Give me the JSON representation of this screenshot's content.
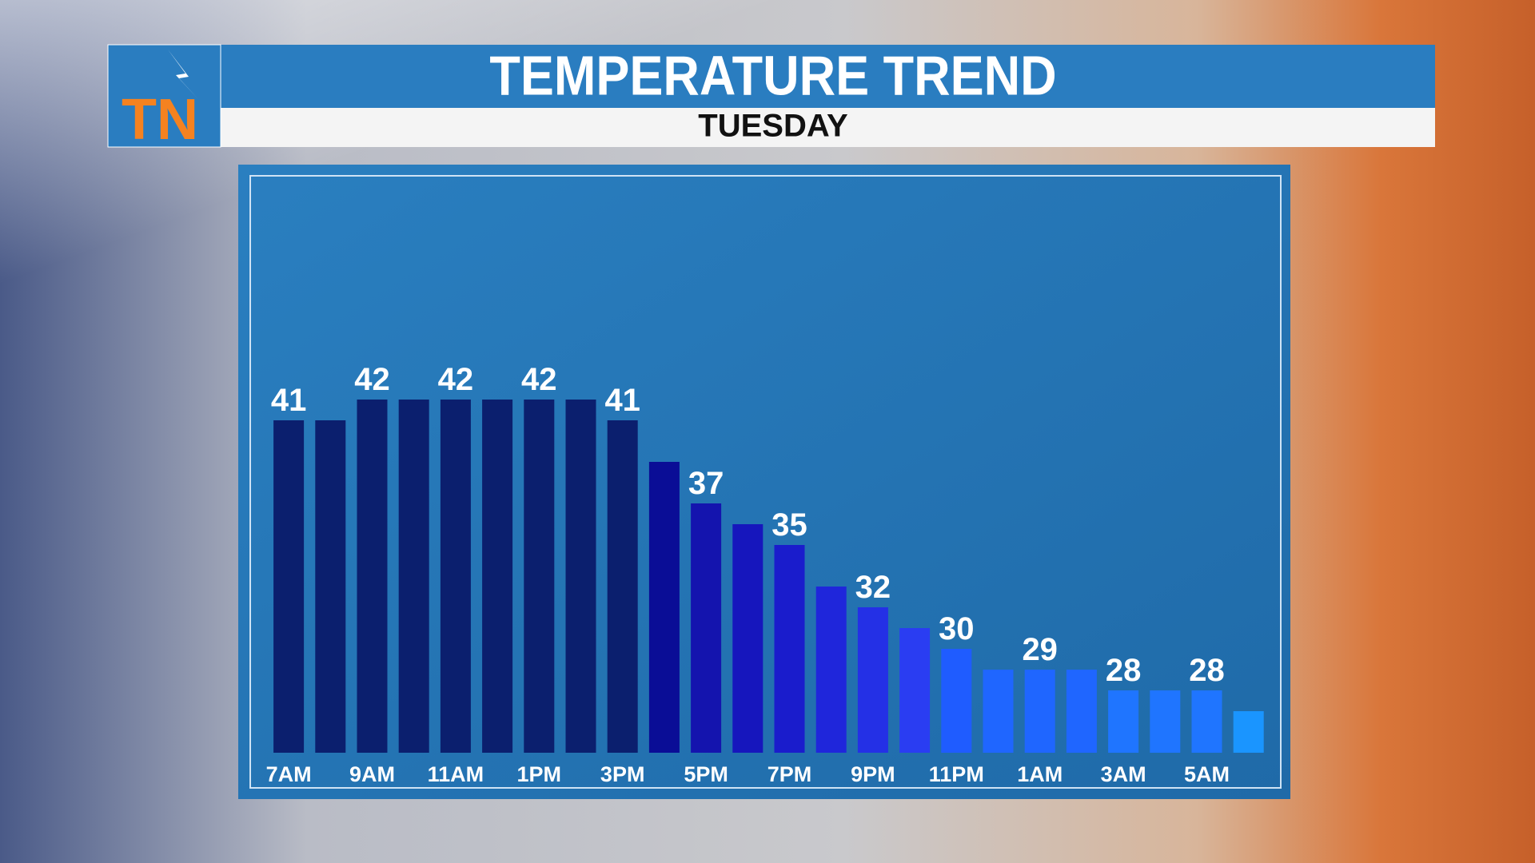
{
  "logo": "TN",
  "chart_data": {
    "type": "bar",
    "title": "TEMPERATURE TREND",
    "subtitle": "TUESDAY",
    "categories": [
      "7AM",
      null,
      "9AM",
      null,
      "11AM",
      null,
      "1PM",
      null,
      "3PM",
      null,
      "5PM",
      null,
      "7PM",
      null,
      "9PM",
      null,
      "11PM",
      null,
      "1AM",
      null,
      "3AM",
      null,
      "5AM",
      null
    ],
    "values": [
      41,
      41,
      42,
      42,
      42,
      42,
      42,
      42,
      41,
      39,
      37,
      36,
      35,
      33,
      32,
      31,
      30,
      29,
      29,
      29,
      28,
      28,
      28,
      27
    ],
    "colors": [
      "#0b1f6e",
      "#0b1f6e",
      "#0b1f6e",
      "#0b1f6e",
      "#0b1f6e",
      "#0b1f6e",
      "#0b1f6e",
      "#0b1f6e",
      "#0b1f6e",
      "#0a0d96",
      "#1414ae",
      "#1616bd",
      "#1a1ccc",
      "#1f26db",
      "#2430e6",
      "#2a3df2",
      "#1f5cff",
      "#1f66ff",
      "#1f66ff",
      "#1f66ff",
      "#1f75ff",
      "#1f75ff",
      "#1f75ff",
      "#1a95ff"
    ],
    "ylim": [
      25,
      52
    ]
  }
}
